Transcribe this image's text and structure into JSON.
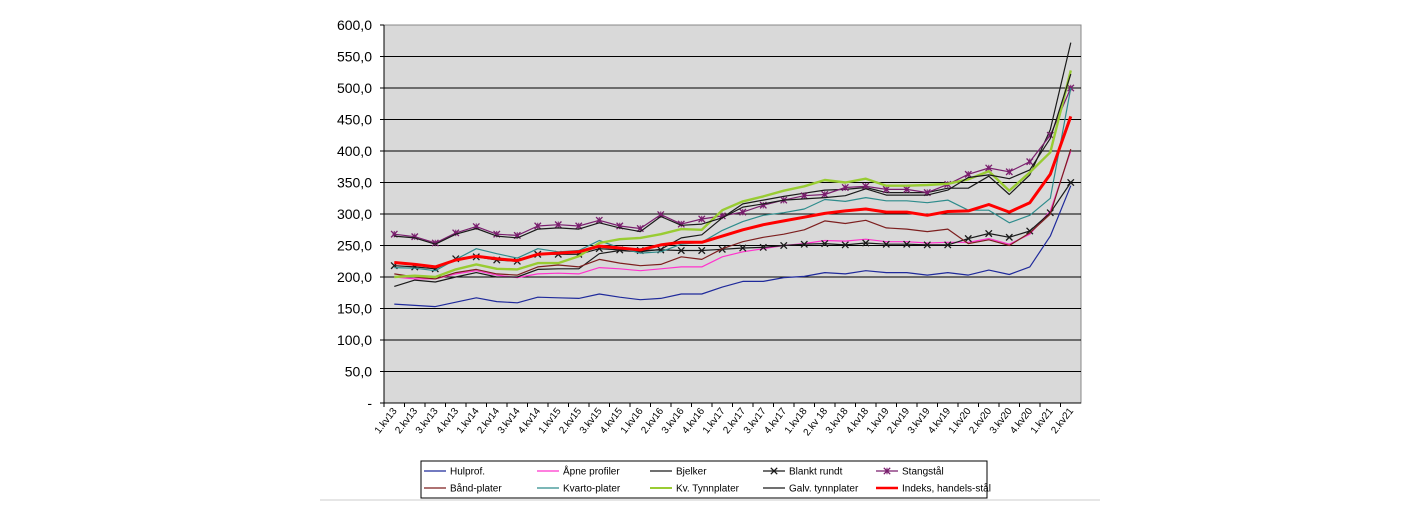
{
  "chart_data": {
    "type": "line",
    "title": "",
    "xlabel": "",
    "ylabel": "",
    "ylim": [
      0,
      600
    ],
    "y_ticks": [
      0,
      50,
      100,
      150,
      200,
      250,
      300,
      350,
      400,
      450,
      500,
      550,
      600
    ],
    "y_tick_labels": [
      "-",
      "50,0",
      "100,0",
      "150,0",
      "200,0",
      "250,0",
      "300,0",
      "350,0",
      "400,0",
      "450,0",
      "500,0",
      "550,0",
      "600,0"
    ],
    "grid": "horizontal",
    "plot_background": "#d9d9d9",
    "legend_position": "bottom",
    "categories": [
      "1.kv13",
      "2.kv13",
      "3.kv13",
      "4.kv13",
      "1.kv14",
      "2.kv14",
      "3.kv14",
      "4.kv14",
      "1.kv15",
      "2.kv15",
      "3.kv15",
      "4.kv15",
      "1.kv16",
      "2.kv16",
      "3.kv16",
      "4.kv16",
      "1.kv17",
      "2.kv17",
      "3.kv17",
      "4.kv17",
      "1.kv18",
      "2.kv 18",
      "3.kv18",
      "4.kv18",
      "1.kv19",
      "2.kv19",
      "3.kv19",
      "4.kv19",
      "1.kv20",
      "2.kv20",
      "3.kv20",
      "4.kv20",
      "1.kv21",
      "2.kv21"
    ],
    "series": [
      {
        "name": "Hulprof.",
        "color": "#1f2a9b",
        "width": 1.2,
        "marker": "none",
        "values": [
          157,
          155,
          153,
          160,
          167,
          161,
          159,
          168,
          167,
          166,
          173,
          168,
          164,
          166,
          173,
          173,
          184,
          193,
          193,
          199,
          201,
          207,
          205,
          210,
          207,
          207,
          203,
          207,
          203,
          211,
          204,
          216,
          265,
          345
        ]
      },
      {
        "name": "Åpne profiler",
        "color": "#ff33cc",
        "width": 1.2,
        "marker": "none",
        "values": [
          200,
          197,
          197,
          205,
          210,
          203,
          199,
          205,
          206,
          205,
          215,
          213,
          210,
          213,
          216,
          216,
          232,
          240,
          245,
          250,
          253,
          258,
          257,
          260,
          256,
          256,
          254,
          255,
          255,
          261,
          252,
          268,
          305,
          400
        ]
      },
      {
        "name": "Bjelker",
        "color": "#1a1a1a",
        "width": 1.2,
        "marker": "none",
        "values": [
          185,
          195,
          192,
          200,
          207,
          200,
          200,
          212,
          213,
          213,
          237,
          242,
          240,
          244,
          262,
          267,
          294,
          316,
          322,
          328,
          333,
          338,
          339,
          342,
          334,
          334,
          334,
          341,
          341,
          360,
          331,
          362,
          434,
          572
        ]
      },
      {
        "name": "Blankt rundt",
        "color": "#1a1a1a",
        "width": 1.2,
        "marker": "x",
        "values": [
          218,
          216,
          213,
          229,
          232,
          227,
          225,
          236,
          236,
          236,
          245,
          243,
          242,
          243,
          242,
          242,
          244,
          246,
          247,
          250,
          252,
          253,
          251,
          254,
          252,
          252,
          251,
          251,
          261,
          269,
          263,
          273,
          302,
          350
        ]
      },
      {
        "name": "Stangstål",
        "color": "#7a1f6e",
        "width": 1.2,
        "marker": "xdot",
        "values": [
          268,
          264,
          254,
          270,
          280,
          268,
          266,
          281,
          283,
          281,
          290,
          281,
          277,
          299,
          284,
          292,
          297,
          303,
          314,
          322,
          329,
          331,
          342,
          344,
          339,
          339,
          334,
          347,
          363,
          373,
          367,
          383,
          425,
          500
        ]
      },
      {
        "name": "Bånd-plater",
        "color": "#7d1f1f",
        "width": 1.2,
        "marker": "none",
        "values": [
          205,
          200,
          197,
          207,
          212,
          205,
          203,
          216,
          219,
          216,
          228,
          222,
          218,
          220,
          232,
          228,
          245,
          256,
          263,
          268,
          275,
          289,
          285,
          290,
          278,
          276,
          272,
          276,
          253,
          259,
          250,
          270,
          300,
          403
        ]
      },
      {
        "name": "Kvarto-plater",
        "color": "#2e8c8c",
        "width": 1.2,
        "marker": "none",
        "values": [
          215,
          214,
          210,
          228,
          245,
          237,
          230,
          245,
          240,
          242,
          258,
          246,
          238,
          240,
          252,
          255,
          274,
          288,
          298,
          302,
          308,
          323,
          320,
          326,
          321,
          321,
          318,
          322,
          306,
          306,
          286,
          298,
          325,
          500
        ]
      },
      {
        "name": "Kv. Tynnplater",
        "color": "#99cc33",
        "width": 2.4,
        "marker": "none",
        "values": [
          200,
          202,
          200,
          212,
          220,
          213,
          212,
          222,
          222,
          233,
          254,
          260,
          262,
          268,
          276,
          275,
          306,
          320,
          328,
          337,
          344,
          354,
          350,
          356,
          345,
          345,
          346,
          348,
          355,
          368,
          337,
          366,
          398,
          528
        ]
      },
      {
        "name": "Galv. tynnplater",
        "color": "#1a1a1a",
        "width": 1.2,
        "marker": "none",
        "values": [
          265,
          262,
          252,
          268,
          277,
          265,
          262,
          276,
          278,
          276,
          286,
          278,
          272,
          296,
          282,
          284,
          294,
          311,
          316,
          322,
          324,
          326,
          329,
          340,
          330,
          330,
          330,
          338,
          358,
          362,
          356,
          370,
          420,
          522
        ]
      },
      {
        "name": "Indeks, handels-stål",
        "color": "#ff0000",
        "width": 3,
        "marker": "none",
        "values": [
          223,
          220,
          216,
          227,
          233,
          229,
          226,
          236,
          238,
          240,
          249,
          246,
          243,
          251,
          255,
          255,
          265,
          275,
          283,
          289,
          295,
          301,
          305,
          308,
          303,
          303,
          298,
          304,
          305,
          315,
          303,
          318,
          363,
          455
        ]
      }
    ]
  }
}
